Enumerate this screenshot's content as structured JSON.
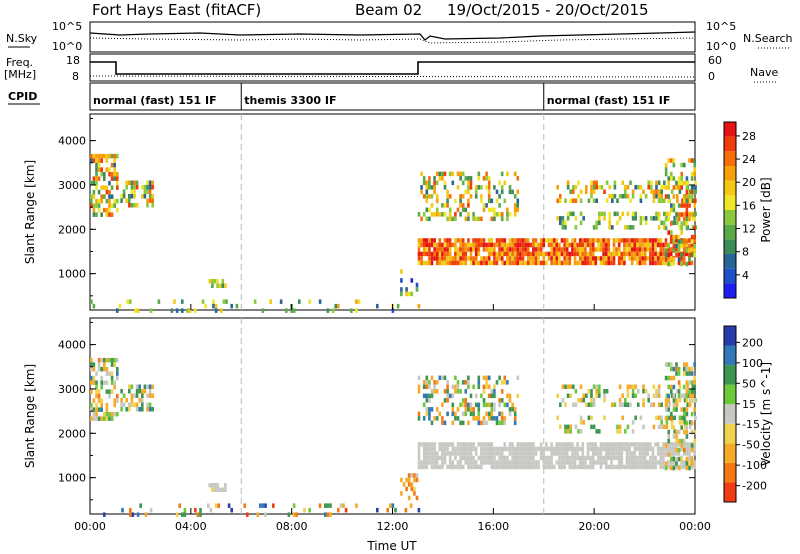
{
  "header": {
    "title": "Fort Hays East (fitACF)",
    "beam": "Beam 02",
    "date_range": "19/Oct/2015 - 20/Oct/2015"
  },
  "top_panels": {
    "nsky_label": "N.Sky",
    "nsearch_label": "N.Search",
    "freq_label": "Freq.",
    "freq_unit": "[MHz]",
    "nave_label": "Nave",
    "cpid_label": "CPID",
    "noise_ticks": [
      "10^5",
      "10^0"
    ],
    "noise_ticks_right": [
      "10^5",
      "10^0"
    ],
    "freq_ticks": [
      "18",
      "8"
    ],
    "nave_ticks": [
      "60",
      "0"
    ]
  },
  "cpid_segments": [
    {
      "label": "normal (fast) 151 IF",
      "start_hour": 0,
      "end_hour": 6
    },
    {
      "label": "themis 3300 IF",
      "start_hour": 6,
      "end_hour": 18
    },
    {
      "label": "normal (fast) 151 IF",
      "start_hour": 18,
      "end_hour": 24
    }
  ],
  "chart_data": [
    {
      "type": "heatmap",
      "title": "",
      "xlabel": "Time UT",
      "ylabel": "Slant Range [km]",
      "x_ticks": [
        "00:00",
        "04:00",
        "08:00",
        "12:00",
        "16:00",
        "20:00",
        "00:00"
      ],
      "y_ticks": [
        "1000",
        "2000",
        "3000",
        "4000"
      ],
      "xlim": [
        0,
        24
      ],
      "ylim": [
        180,
        4600
      ],
      "colorbar": {
        "label": "Power [dB]",
        "ticks": [
          "4",
          "8",
          "12",
          "16",
          "20",
          "24",
          "28"
        ],
        "colors": [
          "#1e1ef0",
          "#1e50c8",
          "#286496",
          "#3c8c5a",
          "#5aaa46",
          "#8cc83c",
          "#f0e628",
          "#f5c814",
          "#f5a00a",
          "#f56e0a",
          "#f03c0a",
          "#e61414"
        ]
      }
    },
    {
      "type": "heatmap",
      "title": "",
      "xlabel": "Time UT",
      "ylabel": "Slant Range [km]",
      "x_ticks": [
        "00:00",
        "04:00",
        "08:00",
        "12:00",
        "16:00",
        "20:00",
        "00:00"
      ],
      "y_ticks": [
        "1000",
        "2000",
        "3000",
        "4000"
      ],
      "xlim": [
        0,
        24
      ],
      "ylim": [
        180,
        4600
      ],
      "colorbar": {
        "label": "Velocity [m s^-1]",
        "ticks": [
          "200",
          "100",
          "50",
          "15",
          "-15",
          "-50",
          "-100",
          "-200"
        ],
        "colors": [
          "#283caa",
          "#3278b4",
          "#3c9650",
          "#6ec83c",
          "#c8c8c3",
          "#f0d250",
          "#f5aa28",
          "#f57814",
          "#f03c14"
        ]
      }
    }
  ],
  "echo_regions": [
    {
      "x0": 0,
      "x1": 1.1,
      "y0": 2300,
      "y1": 3700,
      "pmin": 8,
      "pmax": 28,
      "v": 0,
      "vspread": 80,
      "density": 0.55
    },
    {
      "x0": 1.2,
      "x1": 2.5,
      "y0": 2500,
      "y1": 3100,
      "pmin": 8,
      "pmax": 26,
      "v": 0,
      "vspread": 80,
      "density": 0.55
    },
    {
      "x0": 4.7,
      "x1": 5.4,
      "y0": 720,
      "y1": 880,
      "pmin": 10,
      "pmax": 24,
      "v": 0,
      "vspread": 20,
      "density": 0.8
    },
    {
      "x0": 0,
      "x1": 13,
      "y0": 200,
      "y1": 420,
      "pmin": 4,
      "pmax": 22,
      "v": 0,
      "vspread": 200,
      "density": 0.15
    },
    {
      "x0": 12.3,
      "x1": 13.0,
      "y0": 550,
      "y1": 1100,
      "pmin": 4,
      "pmax": 20,
      "v": -60,
      "vspread": 60,
      "density": 0.4
    },
    {
      "x0": 13.0,
      "x1": 24,
      "y0": 1250,
      "y1": 1800,
      "pmin": 18,
      "pmax": 30,
      "v": 0,
      "vspread": 10,
      "density": 0.85
    },
    {
      "x0": 13.0,
      "x1": 17,
      "y0": 2200,
      "y1": 3300,
      "pmin": 8,
      "pmax": 26,
      "v": 0,
      "vspread": 100,
      "density": 0.4
    },
    {
      "x0": 18.5,
      "x1": 24,
      "y0": 2600,
      "y1": 3100,
      "pmin": 8,
      "pmax": 26,
      "v": 0,
      "vspread": 60,
      "density": 0.4
    },
    {
      "x0": 18.5,
      "x1": 24,
      "y0": 2050,
      "y1": 2400,
      "pmin": 8,
      "pmax": 20,
      "v": 0,
      "vspread": 60,
      "density": 0.35
    },
    {
      "x0": 22.8,
      "x1": 24,
      "y0": 1200,
      "y1": 3600,
      "pmin": 8,
      "pmax": 28,
      "v": 0,
      "vspread": 80,
      "density": 0.45
    }
  ]
}
